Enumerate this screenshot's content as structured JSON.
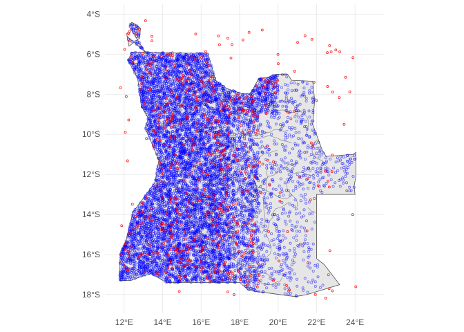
{
  "map": {
    "projection": "longitude-latitude",
    "x_range_lon": [
      11.0,
      25.5
    ],
    "y_range_lat": [
      -18.9,
      -3.5
    ],
    "x_ticks": [
      {
        "lon": 12,
        "label": "12°E"
      },
      {
        "lon": 14,
        "label": "14°E"
      },
      {
        "lon": 16,
        "label": "16°E"
      },
      {
        "lon": 18,
        "label": "18°E"
      },
      {
        "lon": 20,
        "label": "20°E"
      },
      {
        "lon": 22,
        "label": "22°E"
      },
      {
        "lon": 24,
        "label": "24°E"
      }
    ],
    "y_ticks": [
      {
        "lat": -4,
        "label": "4°S"
      },
      {
        "lat": -6,
        "label": "6°S"
      },
      {
        "lat": -8,
        "label": "8°S"
      },
      {
        "lat": -10,
        "label": "10°S"
      },
      {
        "lat": -12,
        "label": "12°S"
      },
      {
        "lat": -14,
        "label": "14°S"
      },
      {
        "lat": -16,
        "label": "16°S"
      },
      {
        "lat": -18,
        "label": "18°S"
      }
    ],
    "grid": true,
    "colors": {
      "country_fill": "#e6e6e6",
      "border": "#4d4d4d",
      "blue_points": "#0000ff",
      "red_points": "#ff0000"
    },
    "country_outline_lonlat": [
      [
        12.25,
        -4.6
      ],
      [
        12.4,
        -4.4
      ],
      [
        12.85,
        -4.7
      ],
      [
        12.8,
        -5.2
      ],
      [
        12.25,
        -5.6
      ],
      [
        12.15,
        -5.1
      ],
      [
        13.1,
        -5.9
      ],
      [
        15.5,
        -5.95
      ],
      [
        16.35,
        -5.95
      ],
      [
        16.75,
        -7.3
      ],
      [
        17.3,
        -7.7
      ],
      [
        18.05,
        -7.95
      ],
      [
        18.55,
        -8.0
      ],
      [
        19.0,
        -7.2
      ],
      [
        19.5,
        -7.15
      ],
      [
        19.9,
        -7.0
      ],
      [
        20.5,
        -7.0
      ],
      [
        20.7,
        -7.3
      ],
      [
        21.8,
        -7.35
      ],
      [
        21.9,
        -8.3
      ],
      [
        21.8,
        -9.5
      ],
      [
        22.3,
        -10.8
      ],
      [
        22.5,
        -11.1
      ],
      [
        23.9,
        -11.0
      ],
      [
        24.05,
        -10.9
      ],
      [
        24.05,
        -12.05
      ],
      [
        23.95,
        -12.6
      ],
      [
        24.0,
        -13.0
      ],
      [
        22.0,
        -13.0
      ],
      [
        22.0,
        -16.2
      ],
      [
        22.4,
        -16.5
      ],
      [
        23.2,
        -17.5
      ],
      [
        21.5,
        -18.0
      ],
      [
        20.9,
        -18.1
      ],
      [
        18.5,
        -17.8
      ],
      [
        18.0,
        -17.4
      ],
      [
        15.0,
        -17.4
      ],
      [
        14.2,
        -17.4
      ],
      [
        13.4,
        -16.95
      ],
      [
        12.9,
        -17.1
      ],
      [
        12.3,
        -17.3
      ],
      [
        11.75,
        -17.3
      ],
      [
        11.8,
        -16.0
      ],
      [
        12.1,
        -15.3
      ],
      [
        12.45,
        -13.9
      ],
      [
        13.6,
        -12.4
      ],
      [
        13.8,
        -11.3
      ],
      [
        13.5,
        -10.6
      ],
      [
        13.1,
        -9.7
      ],
      [
        13.25,
        -9.2
      ],
      [
        12.9,
        -8.6
      ],
      [
        12.7,
        -7.2
      ],
      [
        12.2,
        -6.3
      ],
      [
        12.3,
        -6.1
      ],
      [
        12.4,
        -5.9
      ],
      [
        13.1,
        -5.9
      ]
    ],
    "blue_point_count": 9000,
    "red_point_count": 650
  }
}
